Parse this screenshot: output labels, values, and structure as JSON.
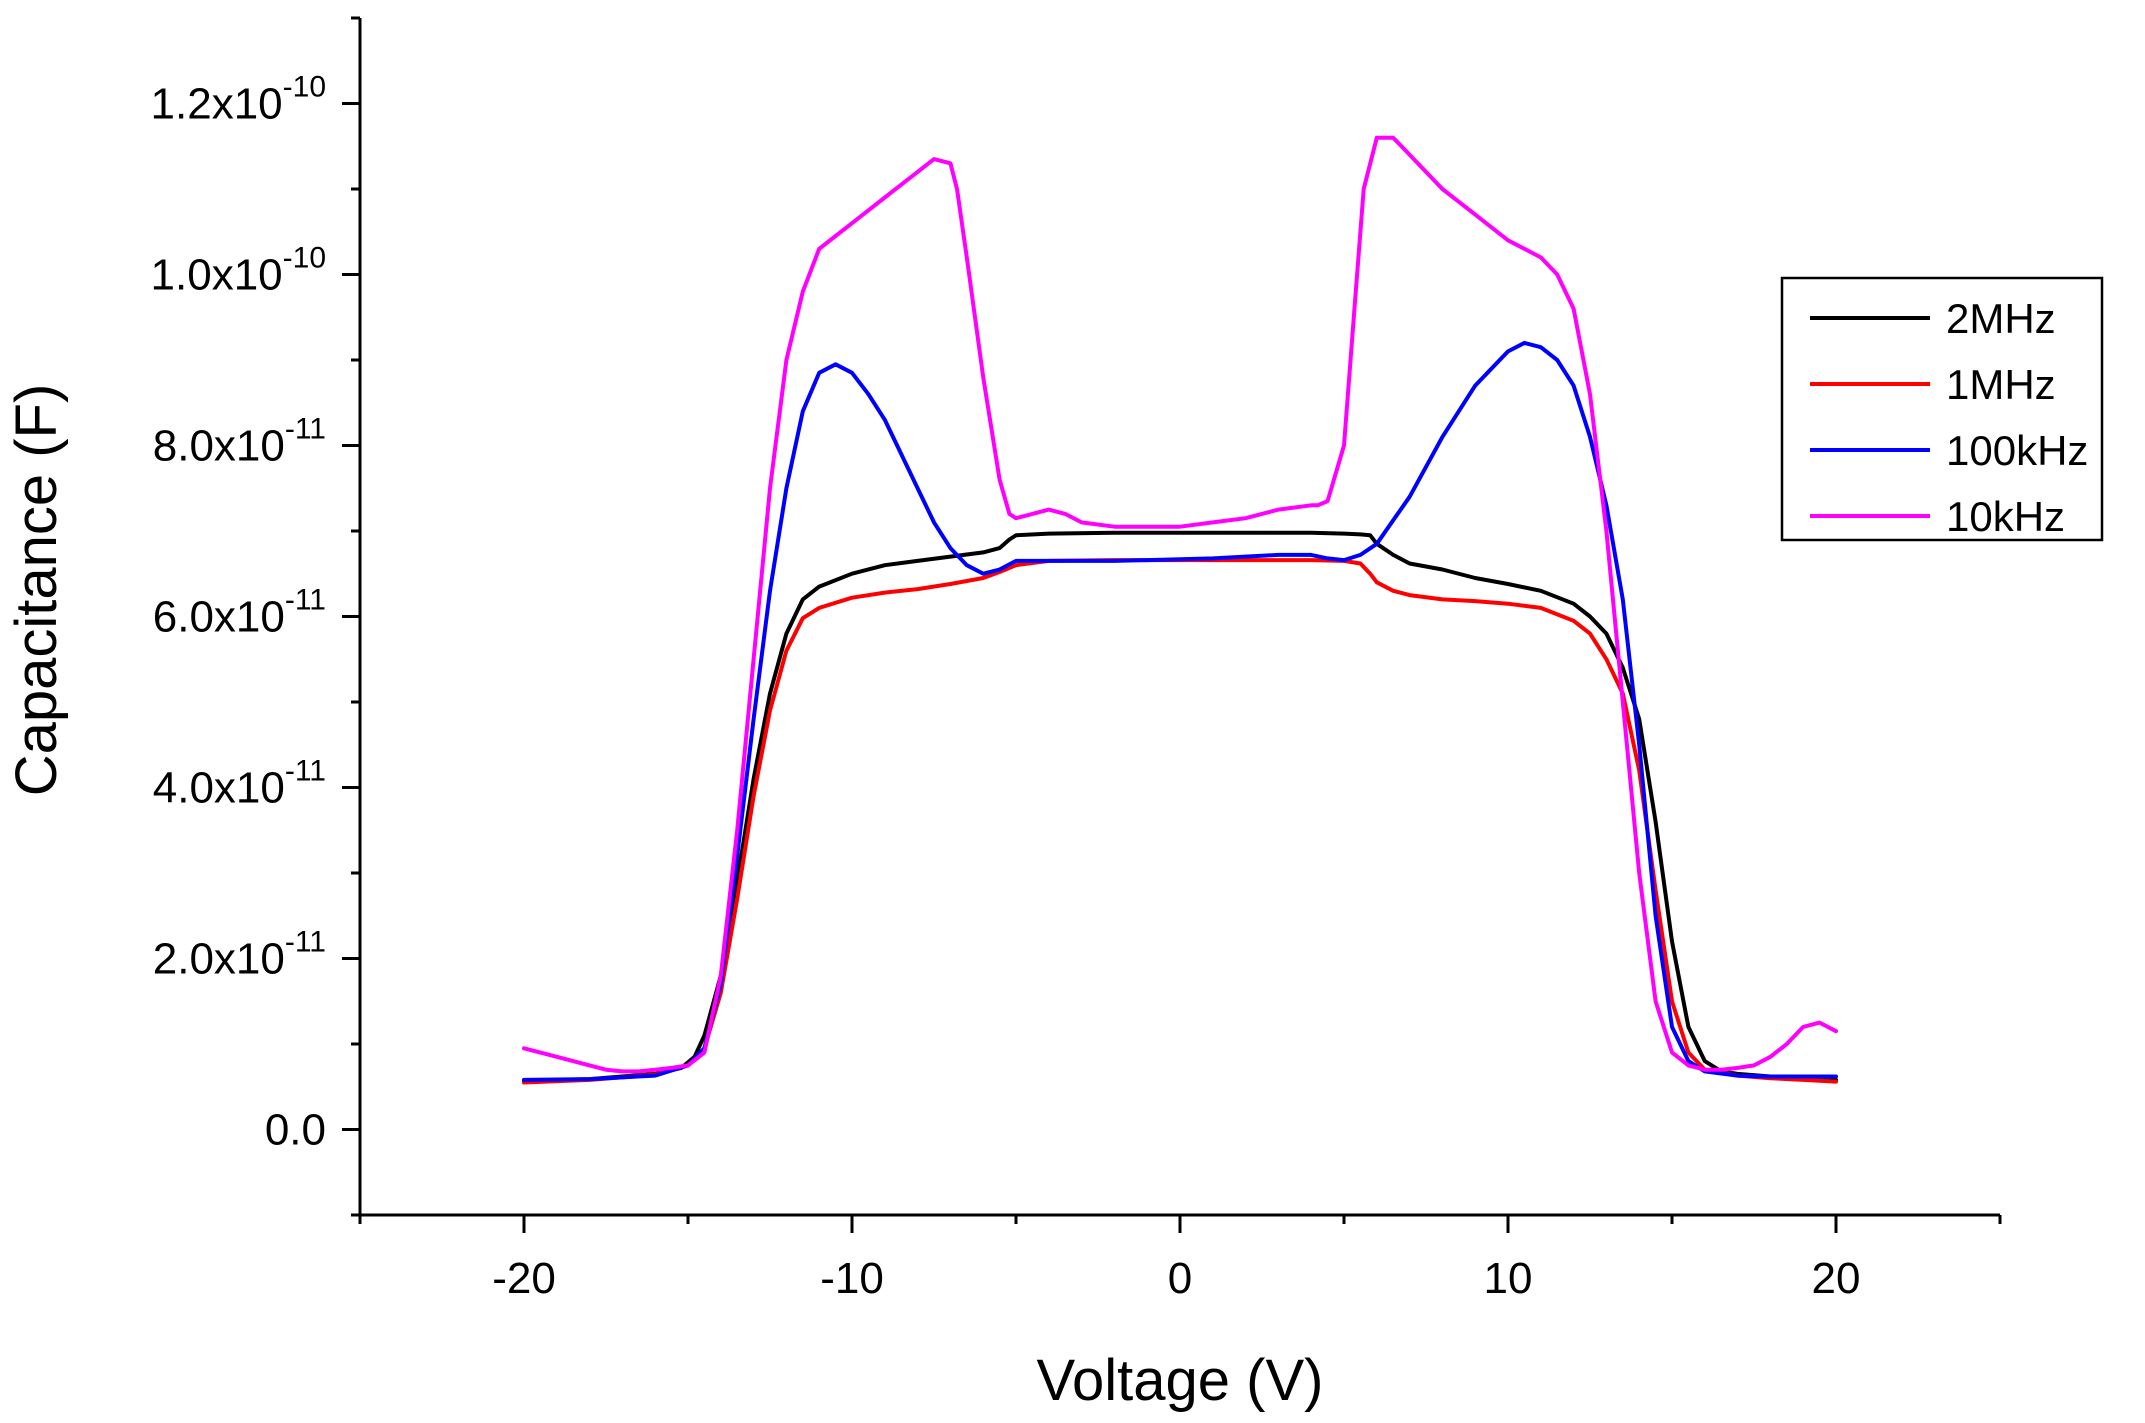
{
  "chart_data": {
    "type": "line",
    "title": "",
    "xlabel": "Voltage (V)",
    "ylabel": "Capacitance (F)",
    "xlim": [
      -25,
      25
    ],
    "ylim": [
      -1e-11,
      1.3e-10
    ],
    "grid": false,
    "legend_position": "right",
    "x_ticks": [
      {
        "value": -20,
        "label": "-20"
      },
      {
        "value": -10,
        "label": "-10"
      },
      {
        "value": 0,
        "label": "0"
      },
      {
        "value": 10,
        "label": "10"
      },
      {
        "value": 20,
        "label": "20"
      }
    ],
    "y_ticks": [
      {
        "value": 0,
        "mantissa": "0.0",
        "exponent": ""
      },
      {
        "value": 2e-11,
        "mantissa": "2.0x10",
        "exponent": "-11"
      },
      {
        "value": 4e-11,
        "mantissa": "4.0x10",
        "exponent": "-11"
      },
      {
        "value": 6e-11,
        "mantissa": "6.0x10",
        "exponent": "-11"
      },
      {
        "value": 8e-11,
        "mantissa": "8.0x10",
        "exponent": "-11"
      },
      {
        "value": 1e-10,
        "mantissa": "1.0x10",
        "exponent": "-10"
      },
      {
        "value": 1.2e-10,
        "mantissa": "1.2x10",
        "exponent": "-10"
      }
    ],
    "series": [
      {
        "name": "2MHz",
        "color": "#000000",
        "x": [
          -20,
          -18,
          -16,
          -15.2,
          -14.8,
          -14.5,
          -14,
          -13.5,
          -13,
          -12.5,
          -12,
          -11.5,
          -11,
          -10,
          -9,
          -8,
          -7,
          -6,
          -5.5,
          -5.2,
          -5,
          -4,
          -2,
          0,
          2,
          4,
          5,
          5.5,
          5.8,
          6,
          6.5,
          7,
          8,
          9,
          10,
          11,
          12,
          12.5,
          13,
          13.5,
          14,
          14.5,
          15,
          15.5,
          16,
          16.5,
          17,
          18,
          19,
          20
        ],
        "y": [
          5.7e-12,
          5.9e-12,
          6.5e-12,
          7.2e-12,
          8.5e-12,
          1.1e-11,
          1.8e-11,
          2.9e-11,
          4.1e-11,
          5.1e-11,
          5.8e-11,
          6.2e-11,
          6.35e-11,
          6.5e-11,
          6.6e-11,
          6.65e-11,
          6.7e-11,
          6.75e-11,
          6.8e-11,
          6.9e-11,
          6.95e-11,
          6.97e-11,
          6.98e-11,
          6.98e-11,
          6.98e-11,
          6.98e-11,
          6.97e-11,
          6.96e-11,
          6.95e-11,
          6.85e-11,
          6.72e-11,
          6.62e-11,
          6.55e-11,
          6.45e-11,
          6.38e-11,
          6.3e-11,
          6.15e-11,
          6e-11,
          5.8e-11,
          5.4e-11,
          4.8e-11,
          3.6e-11,
          2.2e-11,
          1.2e-11,
          8e-12,
          6.8e-12,
          6.5e-12,
          6.2e-12,
          6e-12,
          5.8e-12
        ]
      },
      {
        "name": "1MHz",
        "color": "#ff0000",
        "x": [
          -20,
          -18,
          -16,
          -15,
          -14.5,
          -14,
          -13.5,
          -13,
          -12.5,
          -12,
          -11.5,
          -11,
          -10,
          -9,
          -8,
          -7,
          -6,
          -5.5,
          -5,
          -4,
          -2,
          0,
          2,
          4,
          5,
          5.5,
          5.8,
          6,
          6.5,
          7,
          8,
          9,
          10,
          11,
          12,
          12.5,
          13,
          13.5,
          14,
          14.5,
          15,
          15.5,
          16,
          17,
          18,
          19,
          20
        ],
        "y": [
          5.5e-12,
          5.8e-12,
          6.4e-12,
          7.5e-12,
          9.5e-12,
          1.6e-11,
          2.7e-11,
          3.9e-11,
          4.9e-11,
          5.6e-11,
          5.98e-11,
          6.1e-11,
          6.22e-11,
          6.28e-11,
          6.32e-11,
          6.38e-11,
          6.45e-11,
          6.52e-11,
          6.6e-11,
          6.65e-11,
          6.66e-11,
          6.66e-11,
          6.66e-11,
          6.66e-11,
          6.65e-11,
          6.62e-11,
          6.5e-11,
          6.4e-11,
          6.3e-11,
          6.25e-11,
          6.2e-11,
          6.18e-11,
          6.15e-11,
          6.1e-11,
          5.95e-11,
          5.8e-11,
          5.5e-11,
          5.1e-11,
          4.2e-11,
          2.8e-11,
          1.5e-11,
          9e-12,
          7e-12,
          6.3e-12,
          6e-12,
          5.8e-12,
          5.6e-12
        ]
      },
      {
        "name": "100kHz",
        "color": "#0000ff",
        "x": [
          -20,
          -18,
          -16,
          -15,
          -14.5,
          -14,
          -13.5,
          -13,
          -12.5,
          -12,
          -11.5,
          -11,
          -10.5,
          -10,
          -9.5,
          -9,
          -8.5,
          -8,
          -7.5,
          -7,
          -6.5,
          -6,
          -5.5,
          -5,
          -4,
          -3,
          -2,
          -1,
          0,
          1,
          2,
          3,
          4,
          4.5,
          5,
          5.5,
          6,
          7,
          8,
          9,
          10,
          10.5,
          11,
          11.5,
          12,
          12.5,
          13,
          13.5,
          14,
          14.5,
          15,
          15.5,
          16,
          17,
          18,
          19,
          20
        ],
        "y": [
          5.8e-12,
          5.9e-12,
          6.3e-12,
          7.5e-12,
          9.5e-12,
          1.7e-11,
          3.2e-11,
          4.8e-11,
          6.3e-11,
          7.5e-11,
          8.4e-11,
          8.85e-11,
          8.95e-11,
          8.85e-11,
          8.6e-11,
          8.3e-11,
          7.9e-11,
          7.5e-11,
          7.1e-11,
          6.8e-11,
          6.6e-11,
          6.5e-11,
          6.55e-11,
          6.65e-11,
          6.65e-11,
          6.65e-11,
          6.65e-11,
          6.66e-11,
          6.67e-11,
          6.68e-11,
          6.7e-11,
          6.72e-11,
          6.72e-11,
          6.68e-11,
          6.66e-11,
          6.72e-11,
          6.85e-11,
          7.4e-11,
          8.1e-11,
          8.7e-11,
          9.1e-11,
          9.2e-11,
          9.15e-11,
          9e-11,
          8.7e-11,
          8.1e-11,
          7.3e-11,
          6.2e-11,
          4.5e-11,
          2.5e-11,
          1.2e-11,
          8e-12,
          6.8e-12,
          6.3e-12,
          6.2e-12,
          6.2e-12,
          6.2e-12
        ]
      },
      {
        "name": "10kHz",
        "color": "#ff00ff",
        "x": [
          -20,
          -19,
          -18,
          -17.5,
          -17,
          -16.5,
          -16,
          -15.5,
          -15,
          -14.5,
          -14,
          -13.5,
          -13,
          -12.5,
          -12,
          -11.5,
          -11,
          -10.5,
          -10,
          -9,
          -8,
          -7.5,
          -7,
          -6.8,
          -6.5,
          -6,
          -5.5,
          -5.2,
          -5,
          -4.5,
          -4,
          -3.5,
          -3,
          -2,
          -1,
          0,
          1,
          2,
          3,
          4,
          4.2,
          4.5,
          5,
          5.3,
          5.6,
          6,
          6.5,
          7,
          8,
          9,
          10,
          11,
          11.5,
          12,
          12.5,
          13,
          13.5,
          14,
          14.5,
          15,
          15.5,
          16,
          16.5,
          17,
          17.5,
          18,
          18.5,
          19,
          19.5,
          20
        ],
        "y": [
          9.5e-12,
          8.5e-12,
          7.5e-12,
          7e-12,
          6.8e-12,
          6.8e-12,
          7e-12,
          7.2e-12,
          7.5e-12,
          9e-12,
          1.8e-11,
          3.5e-11,
          5.5e-11,
          7.5e-11,
          9e-11,
          9.8e-11,
          1.03e-10,
          1.045e-10,
          1.06e-10,
          1.09e-10,
          1.12e-10,
          1.135e-10,
          1.13e-10,
          1.1e-10,
          1.02e-10,
          8.8e-11,
          7.6e-11,
          7.2e-11,
          7.15e-11,
          7.2e-11,
          7.25e-11,
          7.2e-11,
          7.1e-11,
          7.05e-11,
          7.05e-11,
          7.05e-11,
          7.1e-11,
          7.15e-11,
          7.25e-11,
          7.3e-11,
          7.3e-11,
          7.35e-11,
          8e-11,
          9.5e-11,
          1.1e-10,
          1.16e-10,
          1.16e-10,
          1.14e-10,
          1.1e-10,
          1.07e-10,
          1.04e-10,
          1.02e-10,
          1e-10,
          9.6e-11,
          8.6e-11,
          7e-11,
          5e-11,
          3e-11,
          1.5e-11,
          9e-12,
          7.5e-12,
          7e-12,
          7e-12,
          7.2e-12,
          7.5e-12,
          8.5e-12,
          1e-11,
          1.2e-11,
          1.25e-11,
          1.15e-11
        ]
      }
    ]
  }
}
